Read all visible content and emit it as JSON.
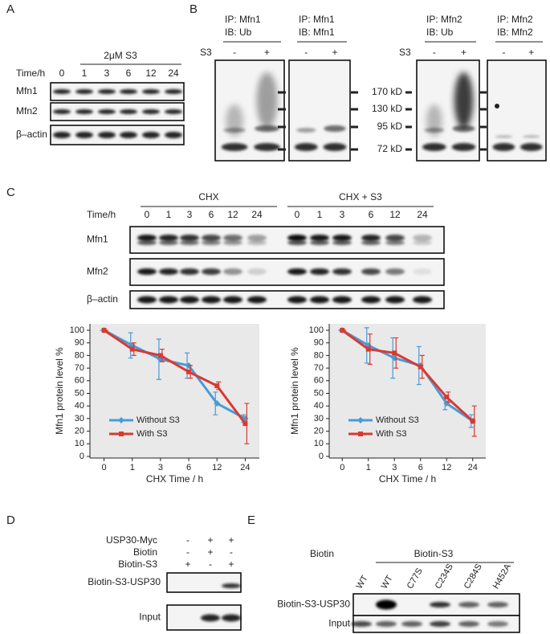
{
  "panels": {
    "A": {
      "label": "A",
      "treatment": "2μM S3",
      "time_label": "Time/h",
      "times": [
        "0",
        "1",
        "3",
        "6",
        "12",
        "24"
      ],
      "rows": [
        "Mfn1",
        "Mfn2",
        "β–actin"
      ]
    },
    "B": {
      "label": "B",
      "s3_labels": [
        "S3",
        "S3"
      ],
      "blots": [
        {
          "ip": "IP: Mfn1",
          "ib": "IB: Ub",
          "signs": [
            "-",
            "+"
          ]
        },
        {
          "ip": "IP: Mfn1",
          "ib": "IB: Mfn1",
          "signs": [
            "-",
            "+"
          ]
        },
        {
          "ip": "IP: Mfn2",
          "ib": "IB: Ub",
          "signs": [
            "-",
            "+"
          ]
        },
        {
          "ip": "IP: Mfn2",
          "ib": "IB: Mfn2",
          "signs": [
            "-",
            "+"
          ]
        }
      ],
      "markers": [
        "170 kD",
        "130 kD",
        "95 kD",
        "72 kD"
      ]
    },
    "C": {
      "label": "C",
      "time_label": "Time/h",
      "groups": [
        {
          "label": "CHX",
          "times": [
            "0",
            "1",
            "3",
            "6",
            "12",
            "24"
          ]
        },
        {
          "label": "CHX + S3",
          "times": [
            "0",
            "1",
            "3",
            "6",
            "12",
            "24"
          ]
        }
      ],
      "rows": [
        "Mfn1",
        "Mfn2",
        "β–actin"
      ]
    },
    "D": {
      "label": "D",
      "conditions": [
        {
          "name": "USP30-Myc",
          "signs": [
            "-",
            "+",
            "+"
          ]
        },
        {
          "name": "Biotin",
          "signs": [
            "-",
            "+",
            "-"
          ]
        },
        {
          "name": "Biotin-S3",
          "signs": [
            "+",
            "-",
            "+"
          ]
        }
      ],
      "rows": [
        "Biotin-S3-USP30",
        "Input"
      ]
    },
    "E": {
      "label": "E",
      "biotin": "Biotin",
      "biotin_s3": "Biotin-S3",
      "lanes": [
        "WT",
        "WT",
        "C77S",
        "C234S",
        "C284S",
        "H452A"
      ],
      "rows": [
        "Biotin-S3-USP30",
        "Input"
      ]
    }
  },
  "chart_data": [
    {
      "type": "line",
      "y_label": "Mfn1 protein level %",
      "x_label": "CHX Time / h",
      "categories": [
        "0",
        "1",
        "3",
        "6",
        "12",
        "24"
      ],
      "ylim": [
        0,
        100
      ],
      "yticks": [
        0,
        10,
        20,
        30,
        40,
        50,
        60,
        70,
        80,
        90,
        100
      ],
      "series": [
        {
          "name": "Without S3",
          "color": "#4a9bd6",
          "marker": "diamond",
          "values": [
            100,
            88,
            77,
            72,
            42,
            30
          ],
          "errors": [
            0,
            10,
            16,
            10,
            9,
            3
          ]
        },
        {
          "name": "With S3",
          "color": "#d83a32",
          "marker": "square",
          "values": [
            100,
            85,
            80,
            67,
            56,
            26
          ],
          "errors": [
            0,
            5,
            5,
            5,
            3,
            16
          ]
        }
      ]
    },
    {
      "type": "line",
      "y_label": "Mfn1 protein level %",
      "x_label": "CHX Time / h",
      "categories": [
        "0",
        "1",
        "3",
        "6",
        "12",
        "24"
      ],
      "ylim": [
        0,
        100
      ],
      "yticks": [
        0,
        10,
        20,
        30,
        40,
        50,
        60,
        70,
        80,
        90,
        100
      ],
      "series": [
        {
          "name": "Without S3",
          "color": "#4a9bd6",
          "marker": "diamond",
          "values": [
            100,
            88,
            78,
            72,
            42,
            28
          ],
          "errors": [
            0,
            14,
            16,
            15,
            5,
            5
          ]
        },
        {
          "name": "With S3",
          "color": "#d83a32",
          "marker": "square",
          "values": [
            100,
            85,
            82,
            71,
            47,
            28
          ],
          "errors": [
            0,
            12,
            12,
            9,
            4,
            12
          ]
        }
      ]
    }
  ]
}
